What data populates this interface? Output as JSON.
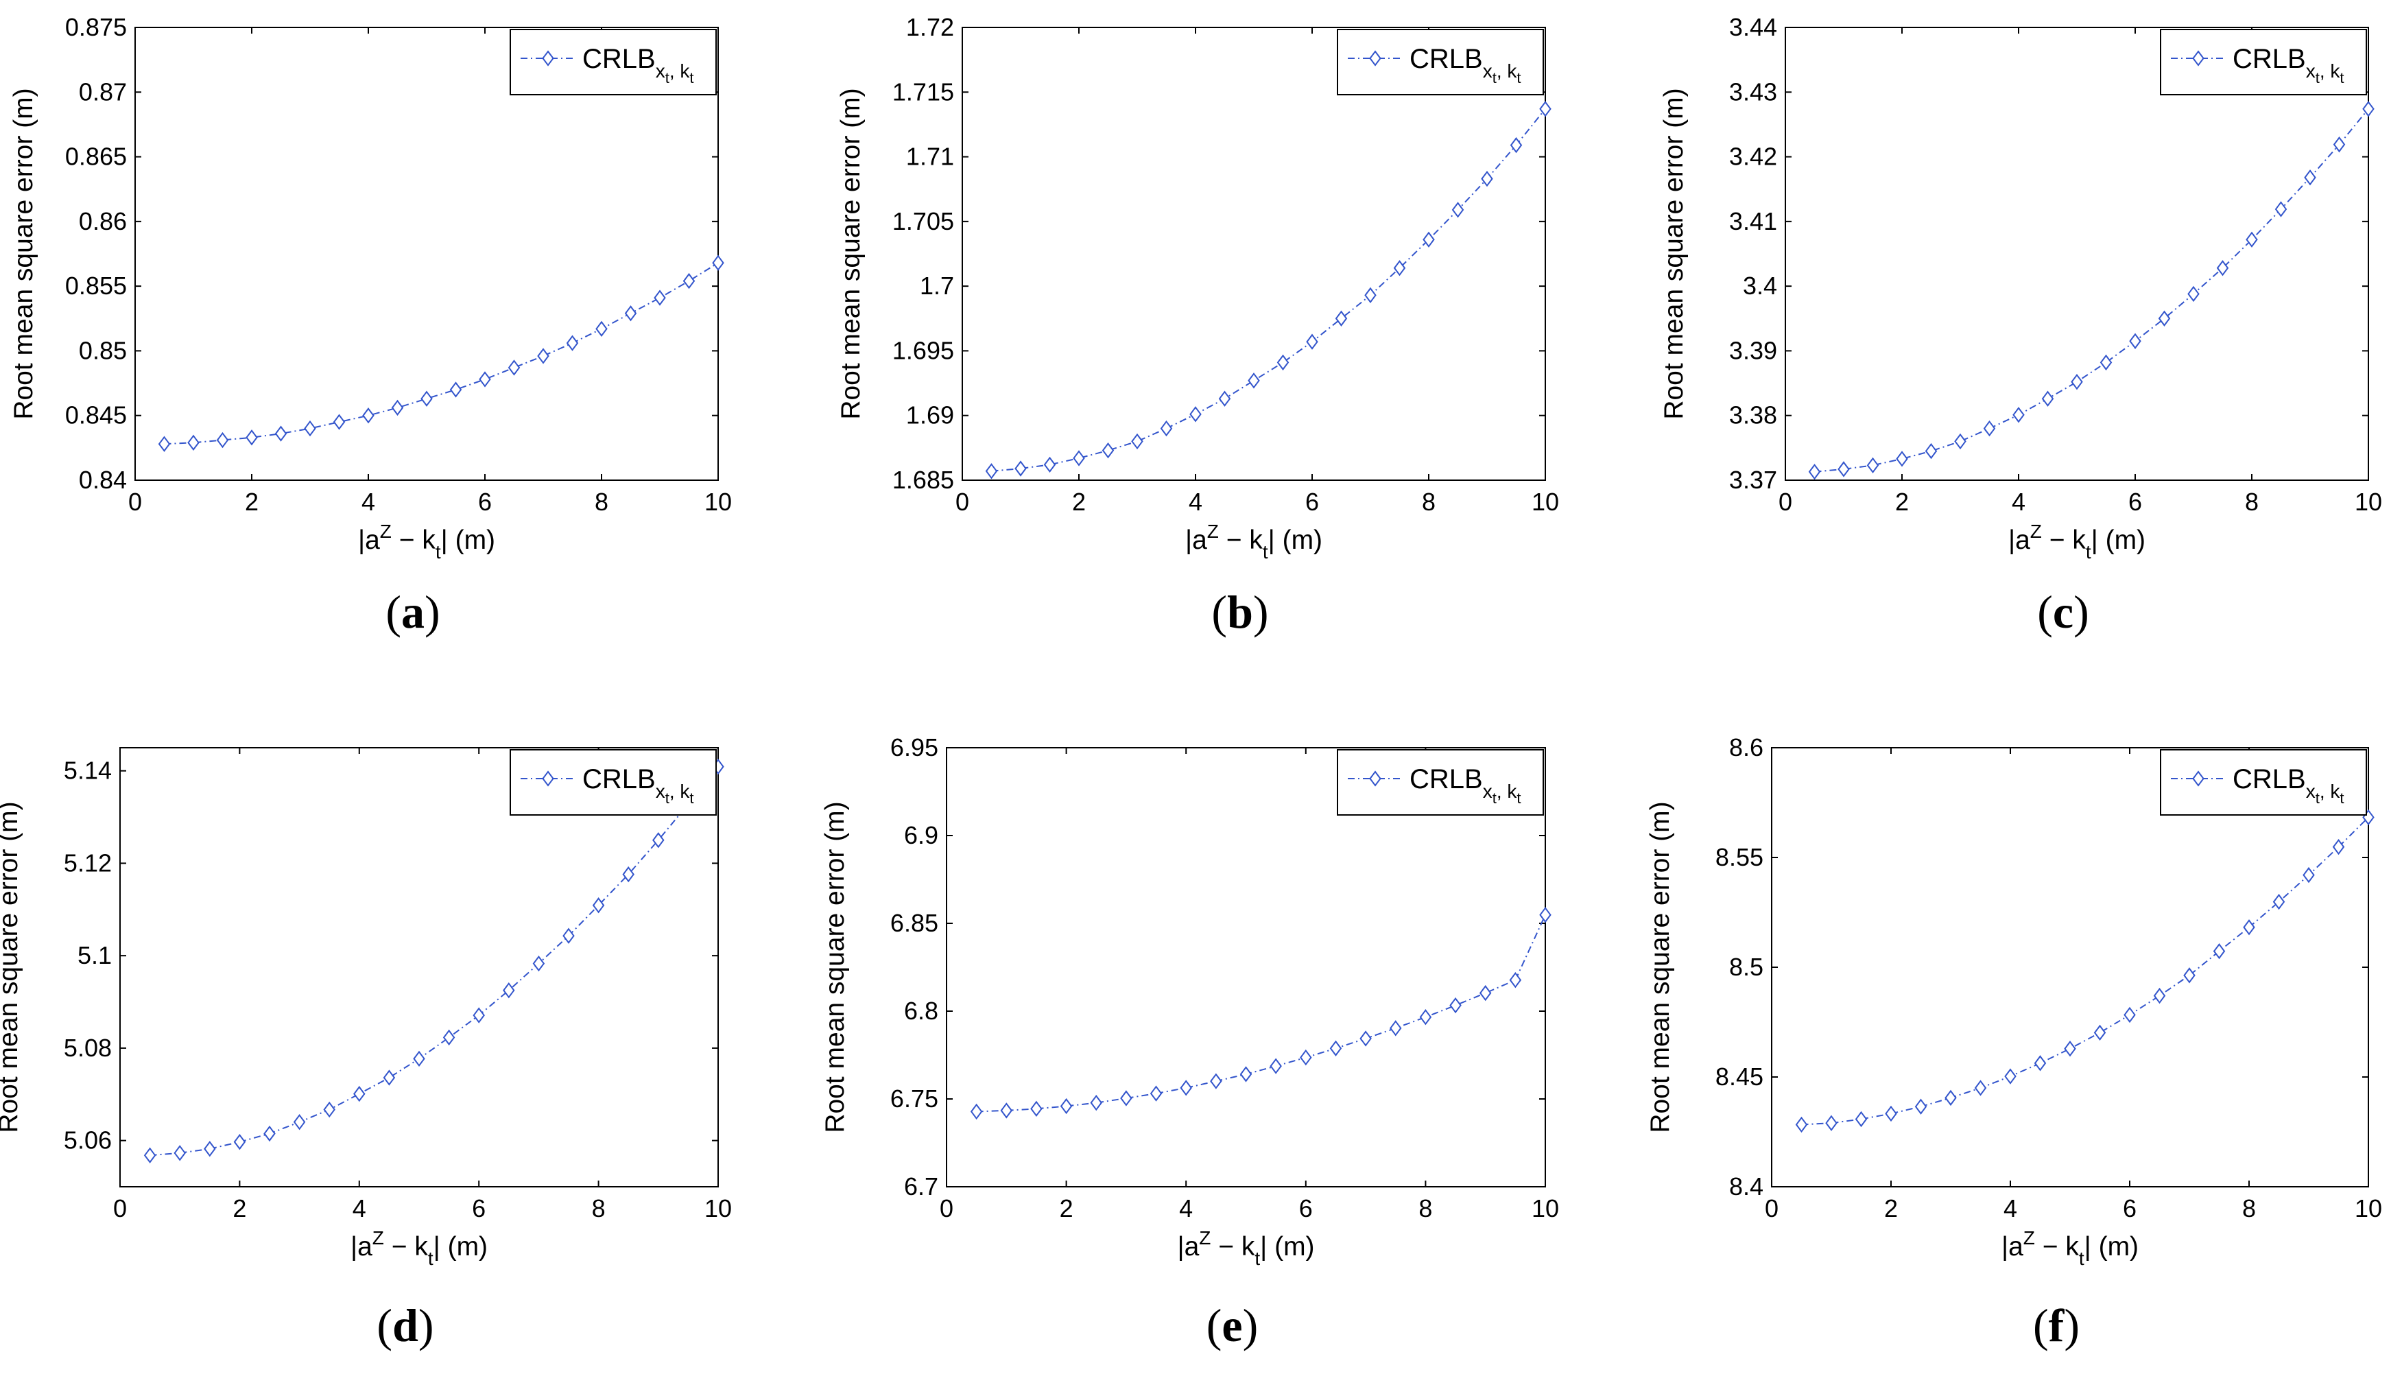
{
  "colors": {
    "series": "#3355cc",
    "axis": "#000000",
    "background": "#ffffff"
  },
  "chart_data": [
    {
      "type": "line",
      "panel_label": "(a)",
      "panel_letter": "a",
      "xlabel": {
        "prefix": "|a",
        "sup": "Z",
        "mid": " − k",
        "sub": "t",
        "suffix": "| (m)"
      },
      "ylabel": "Root mean square error (m)",
      "xlim": [
        0,
        10
      ],
      "ylim": [
        0.84,
        0.875
      ],
      "xticks": [
        0,
        2,
        4,
        6,
        8,
        10
      ],
      "xtick_labels": [
        "0",
        "2",
        "4",
        "6",
        "8",
        "10"
      ],
      "yticks": [
        0.84,
        0.845,
        0.85,
        0.855,
        0.86,
        0.865,
        0.87,
        0.875
      ],
      "ytick_labels": [
        "0.84",
        "0.845",
        "0.85",
        "0.855",
        "0.86",
        "0.865",
        "0.87",
        "0.875"
      ],
      "legend": {
        "main": "CRLB",
        "sub1": "x",
        "sub1b": "t",
        "sep": ", ",
        "sub2": "k",
        "sub2b": "t",
        "position": "top-right"
      },
      "series": [
        {
          "name": "CRLB_xt,kt",
          "x": [
            0.5,
            1,
            1.5,
            2,
            2.5,
            3,
            3.5,
            4,
            4.5,
            5,
            5.5,
            6,
            6.5,
            7,
            7.5,
            8,
            8.5,
            9,
            9.5,
            10
          ],
          "y": [
            0.8428,
            0.8429,
            0.8431,
            0.8433,
            0.8436,
            0.844,
            0.8445,
            0.845,
            0.8456,
            0.8463,
            0.847,
            0.8478,
            0.8487,
            0.8496,
            0.8506,
            0.8517,
            0.8529,
            0.8541,
            0.8554,
            0.8568
          ]
        }
      ]
    },
    {
      "type": "line",
      "panel_label": "(b)",
      "panel_letter": "b",
      "xlabel": {
        "prefix": "|a",
        "sup": "Z",
        "mid": " − k",
        "sub": "t",
        "suffix": "| (m)"
      },
      "ylabel": "Root mean square error (m)",
      "xlim": [
        0,
        10
      ],
      "ylim": [
        1.685,
        1.72
      ],
      "xticks": [
        0,
        2,
        4,
        6,
        8,
        10
      ],
      "xtick_labels": [
        "0",
        "2",
        "4",
        "6",
        "8",
        "10"
      ],
      "yticks": [
        1.685,
        1.69,
        1.695,
        1.7,
        1.705,
        1.71,
        1.715,
        1.72
      ],
      "ytick_labels": [
        "1.685",
        "1.69",
        "1.695",
        "1.7",
        "1.705",
        "1.71",
        "1.715",
        "1.72"
      ],
      "legend": {
        "main": "CRLB",
        "sub1": "x",
        "sub1b": "t",
        "sep": ", ",
        "sub2": "k",
        "sub2b": "t",
        "position": "top-right"
      },
      "series": [
        {
          "name": "CRLB_xt,kt",
          "x": [
            0.5,
            1,
            1.5,
            2,
            2.5,
            3,
            3.5,
            4,
            4.5,
            5,
            5.5,
            6,
            6.5,
            7,
            7.5,
            8,
            8.5,
            9,
            9.5,
            10
          ],
          "y": [
            1.6857,
            1.6859,
            1.6862,
            1.6867,
            1.6873,
            1.688,
            1.689,
            1.6901,
            1.6913,
            1.6927,
            1.6941,
            1.6957,
            1.6975,
            1.6993,
            1.7014,
            1.7036,
            1.7059,
            1.7083,
            1.7109,
            1.7137
          ]
        }
      ]
    },
    {
      "type": "line",
      "panel_label": "(c)",
      "panel_letter": "c",
      "xlabel": {
        "prefix": "|a",
        "sup": "Z",
        "mid": " − k",
        "sub": "t",
        "suffix": "| (m)"
      },
      "ylabel": "Root mean square error (m)",
      "xlim": [
        0,
        10
      ],
      "ylim": [
        3.37,
        3.44
      ],
      "xticks": [
        0,
        2,
        4,
        6,
        8,
        10
      ],
      "xtick_labels": [
        "0",
        "2",
        "4",
        "6",
        "8",
        "10"
      ],
      "yticks": [
        3.37,
        3.38,
        3.39,
        3.4,
        3.41,
        3.42,
        3.43,
        3.44
      ],
      "ytick_labels": [
        "3.37",
        "3.38",
        "3.39",
        "3.4",
        "3.41",
        "3.42",
        "3.43",
        "3.44"
      ],
      "legend": {
        "main": "CRLB",
        "sub1": "x",
        "sub1b": "t",
        "sep": ", ",
        "sub2": "k",
        "sub2b": "t",
        "position": "top-right"
      },
      "series": [
        {
          "name": "CRLB_xt,kt",
          "x": [
            0.5,
            1,
            1.5,
            2,
            2.5,
            3,
            3.5,
            4,
            4.5,
            5,
            5.5,
            6,
            6.5,
            7,
            7.5,
            8,
            8.5,
            9,
            9.5,
            10
          ],
          "y": [
            3.3713,
            3.3717,
            3.3723,
            3.3733,
            3.3745,
            3.376,
            3.378,
            3.3801,
            3.3826,
            3.3852,
            3.3882,
            3.3915,
            3.395,
            3.3988,
            3.4028,
            3.4072,
            3.4119,
            3.4168,
            3.4219,
            3.4274
          ]
        }
      ]
    },
    {
      "type": "line",
      "panel_label": "(d)",
      "panel_letter": "d",
      "xlabel": {
        "prefix": "|a",
        "sup": "Z",
        "mid": " − k",
        "sub": "t",
        "suffix": "| (m)"
      },
      "ylabel": "Root mean square error (m)",
      "xlim": [
        0,
        10
      ],
      "ylim": [
        5.05,
        5.145
      ],
      "xticks": [
        0,
        2,
        4,
        6,
        8,
        10
      ],
      "xtick_labels": [
        "0",
        "2",
        "4",
        "6",
        "8",
        "10"
      ],
      "yticks": [
        5.06,
        5.08,
        5.1,
        5.12,
        5.14
      ],
      "ytick_labels": [
        "5.06",
        "5.08",
        "5.1",
        "5.12",
        "5.14"
      ],
      "legend": {
        "main": "CRLB",
        "sub1": "x",
        "sub1b": "t",
        "sep": ", ",
        "sub2": "k",
        "sub2b": "t",
        "position": "top-right"
      },
      "series": [
        {
          "name": "CRLB_xt,kt",
          "x": [
            0.5,
            1,
            1.5,
            2,
            2.5,
            3,
            3.5,
            4,
            4.5,
            5,
            5.5,
            6,
            6.5,
            7,
            7.5,
            8,
            8.5,
            9,
            9.5,
            10
          ],
          "y": [
            5.0568,
            5.0573,
            5.0582,
            5.0597,
            5.0615,
            5.064,
            5.0667,
            5.0701,
            5.0736,
            5.0777,
            5.0823,
            5.0871,
            5.0925,
            5.0983,
            5.1043,
            5.1109,
            5.1176,
            5.125,
            5.1328,
            5.1409
          ]
        }
      ]
    },
    {
      "type": "line",
      "panel_label": "(e)",
      "panel_letter": "e",
      "xlabel": {
        "prefix": "|a",
        "sup": "Z",
        "mid": " − k",
        "sub": "t",
        "suffix": "| (m)"
      },
      "ylabel": "Root mean square error (m)",
      "xlim": [
        0,
        10
      ],
      "ylim": [
        6.7,
        6.95
      ],
      "xticks": [
        0,
        2,
        4,
        6,
        8,
        10
      ],
      "xtick_labels": [
        "0",
        "2",
        "4",
        "6",
        "8",
        "10"
      ],
      "yticks": [
        6.7,
        6.75,
        6.8,
        6.85,
        6.9,
        6.95
      ],
      "ytick_labels": [
        "6.7",
        "6.75",
        "6.8",
        "6.85",
        "6.9",
        "6.95"
      ],
      "legend": {
        "main": "CRLB",
        "sub1": "x",
        "sub1b": "t",
        "sep": ", ",
        "sub2": "k",
        "sub2b": "t",
        "position": "top-right"
      },
      "series": [
        {
          "name": "CRLB_xt,kt",
          "x": [
            0.5,
            1,
            1.5,
            2,
            2.5,
            3,
            3.5,
            4,
            4.5,
            5,
            5.5,
            6,
            6.5,
            7,
            7.5,
            8,
            8.5,
            9,
            9.5,
            10
          ],
          "y": [
            6.7428,
            6.7434,
            6.7444,
            6.7459,
            6.7478,
            6.7504,
            6.7531,
            6.7563,
            6.7601,
            6.7641,
            6.7687,
            6.7736,
            6.7788,
            6.7844,
            6.7903,
            6.7966,
            6.8033,
            6.8103,
            6.8177,
            6.8548
          ]
        }
      ]
    },
    {
      "type": "line",
      "panel_label": "(f)",
      "panel_letter": "f",
      "xlabel": {
        "prefix": "|a",
        "sup": "Z",
        "mid": " − k",
        "sub": "t",
        "suffix": "| (m)"
      },
      "ylabel": "Root mean square error (m)",
      "xlim": [
        0,
        10
      ],
      "ylim": [
        8.4,
        8.6
      ],
      "xticks": [
        0,
        2,
        4,
        6,
        8,
        10
      ],
      "xtick_labels": [
        "0",
        "2",
        "4",
        "6",
        "8",
        "10"
      ],
      "yticks": [
        8.4,
        8.45,
        8.5,
        8.55,
        8.6
      ],
      "ytick_labels": [
        "8.4",
        "8.45",
        "8.5",
        "8.55",
        "8.6"
      ],
      "legend": {
        "main": "CRLB",
        "sub1": "x",
        "sub1b": "t",
        "sep": ", ",
        "sub2": "k",
        "sub2b": "t",
        "position": "top-right"
      },
      "series": [
        {
          "name": "CRLB_xt,kt",
          "x": [
            0.5,
            1,
            1.5,
            2,
            2.5,
            3,
            3.5,
            4,
            4.5,
            5,
            5.5,
            6,
            6.5,
            7,
            7.5,
            8,
            8.5,
            9,
            9.5,
            10
          ],
          "y": [
            8.4283,
            8.429,
            8.4308,
            8.4333,
            8.4365,
            8.4405,
            8.445,
            8.4503,
            8.4563,
            8.4629,
            8.4702,
            8.4783,
            8.487,
            8.4963,
            8.5073,
            8.5182,
            8.5298,
            8.542,
            8.5548,
            8.5683
          ]
        }
      ]
    }
  ]
}
